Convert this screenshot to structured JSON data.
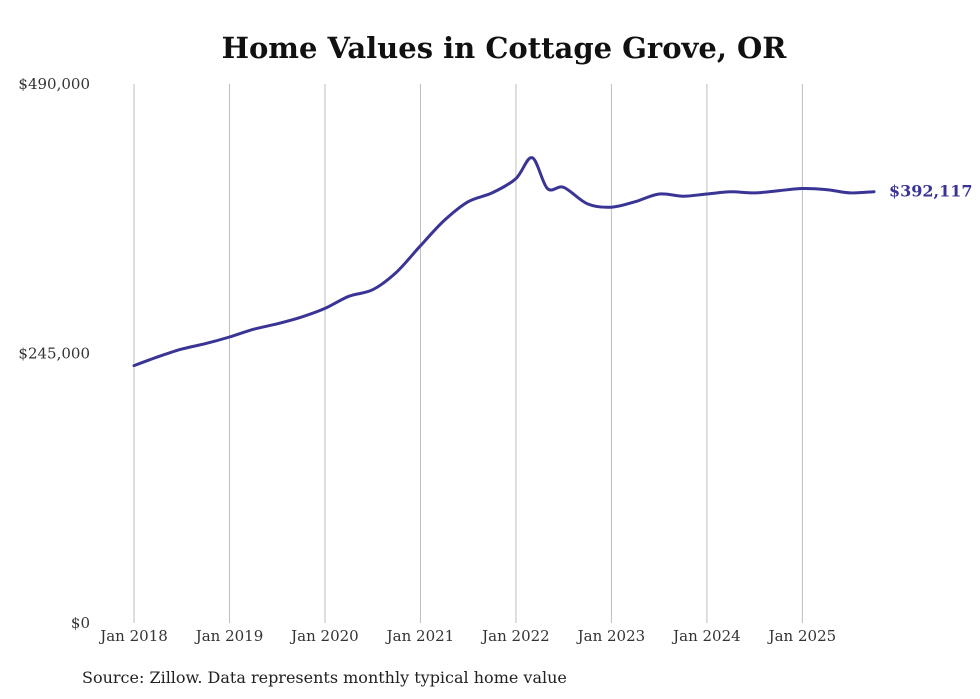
{
  "chart_data": {
    "type": "line",
    "title": "Home Values in Cottage Grove, OR",
    "xlabel": "",
    "ylabel": "",
    "ylim": [
      0,
      490000
    ],
    "yticks": [
      {
        "value": 0,
        "label": "$0"
      },
      {
        "value": 245000,
        "label": "$245,000"
      },
      {
        "value": 490000,
        "label": "$490,000"
      }
    ],
    "xticks": [
      {
        "value": 2018.0,
        "label": "Jan 2018"
      },
      {
        "value": 2019.0,
        "label": "Jan 2019"
      },
      {
        "value": 2020.0,
        "label": "Jan 2020"
      },
      {
        "value": 2021.0,
        "label": "Jan 2021"
      },
      {
        "value": 2022.0,
        "label": "Jan 2022"
      },
      {
        "value": 2023.0,
        "label": "Jan 2023"
      },
      {
        "value": 2024.0,
        "label": "Jan 2024"
      },
      {
        "value": 2025.0,
        "label": "Jan 2025"
      }
    ],
    "xlim": [
      2018.0,
      2025.75
    ],
    "grid": "vertical",
    "line_color": "#3a3494",
    "series": [
      {
        "name": "Typical home value",
        "x": [
          2018.0,
          2018.25,
          2018.5,
          2018.75,
          2019.0,
          2019.25,
          2019.5,
          2019.75,
          2020.0,
          2020.25,
          2020.5,
          2020.75,
          2021.0,
          2021.25,
          2021.5,
          2021.75,
          2022.0,
          2022.17,
          2022.33,
          2022.5,
          2022.75,
          2023.0,
          2023.25,
          2023.5,
          2023.75,
          2024.0,
          2024.25,
          2024.5,
          2024.75,
          2025.0,
          2025.25,
          2025.5,
          2025.75
        ],
        "values": [
          234000,
          242000,
          249000,
          254000,
          260000,
          267000,
          272000,
          278000,
          286000,
          297000,
          303000,
          319000,
          343000,
          366000,
          383000,
          391000,
          404000,
          423000,
          395000,
          396000,
          381000,
          378000,
          383000,
          390000,
          388000,
          390000,
          392000,
          391000,
          393000,
          395000,
          394000,
          391000,
          392117
        ]
      }
    ],
    "end_label": "$392,117"
  },
  "source": "Source: Zillow. Data represents monthly typical home value"
}
